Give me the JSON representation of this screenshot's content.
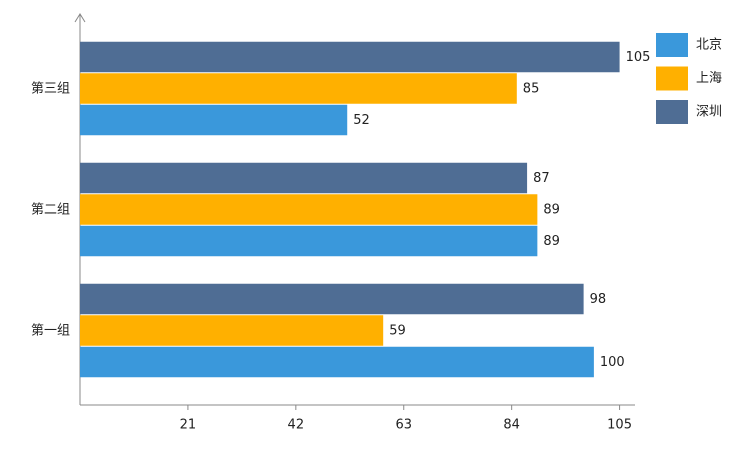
{
  "chart_data": {
    "type": "barh",
    "categories": [
      "第一组",
      "第二组",
      "第三组"
    ],
    "series": [
      {
        "name": "北京",
        "color": "#3a98db",
        "values": [
          100,
          89,
          52
        ]
      },
      {
        "name": "上海",
        "color": "#ffb000",
        "values": [
          59,
          89,
          85
        ]
      },
      {
        "name": "深圳",
        "color": "#4f6d94",
        "values": [
          98,
          87,
          105
        ]
      }
    ],
    "xlim": [
      0,
      108
    ],
    "xticks": [
      21,
      42,
      63,
      84,
      105
    ],
    "legend": "top-right",
    "grid": false
  }
}
